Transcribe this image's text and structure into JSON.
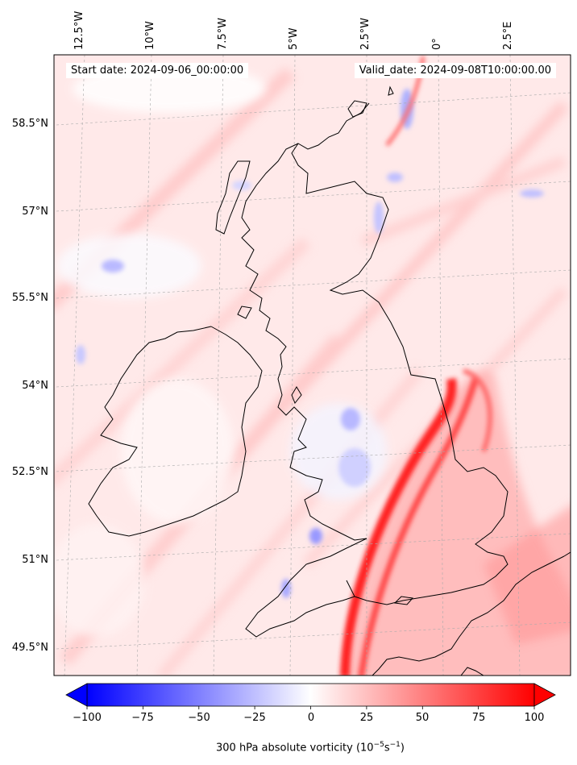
{
  "map": {
    "start_date_text": "Start date: 2024-09-06_00:00:00",
    "valid_date_text": "Valid_date: 2024-09-08T10:00:00.00",
    "lon_labels": [
      "12.5°W",
      "10°W",
      "7.5°W",
      "5°W",
      "2.5°W",
      "0°",
      "2.5°E"
    ],
    "lat_labels": [
      "58.5°N",
      "57°N",
      "55.5°N",
      "54°N",
      "52.5°N",
      "51°N",
      "49.5°N"
    ],
    "colors": {
      "negative": "#0000ff",
      "positive": "#ff0000",
      "background_tint": "#ffe6e6",
      "coastline": "#000000"
    }
  },
  "colorbar": {
    "ticks": [
      "−100",
      "−75",
      "−50",
      "−25",
      "0",
      "25",
      "50",
      "75",
      "100"
    ],
    "range": [
      -100,
      100
    ],
    "label_prefix": "300 hPa absolute vorticity (10",
    "label_exp1": "−5",
    "label_mid": "s",
    "label_exp2": "−1",
    "label_suffix": ")"
  }
}
